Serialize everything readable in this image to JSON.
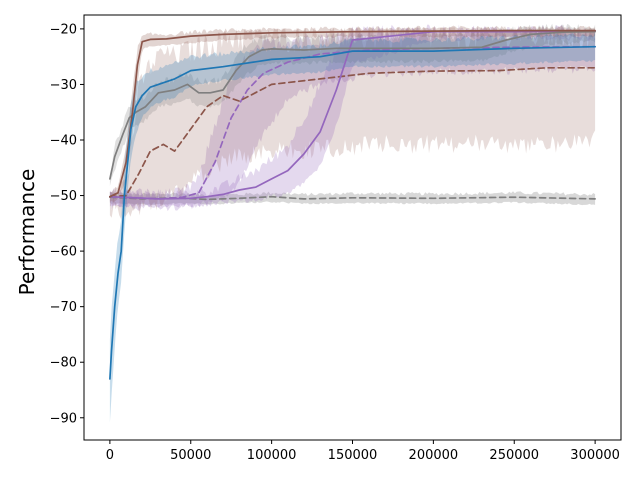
{
  "chart_data": {
    "type": "line",
    "title": "",
    "xlabel": "",
    "ylabel": "Performance",
    "xlim": [
      -16000,
      316000
    ],
    "ylim": [
      -94,
      -17.5
    ],
    "xticks": [
      0,
      50000,
      100000,
      150000,
      200000,
      250000,
      300000
    ],
    "xtick_labels": [
      "0",
      "50000",
      "100000",
      "150000",
      "200000",
      "250000",
      "300000"
    ],
    "yticks": [
      -90,
      -80,
      -70,
      -60,
      -50,
      -40,
      -30,
      -20
    ],
    "ytick_labels": [
      "−90",
      "−80",
      "−70",
      "−60",
      "−50",
      "−40",
      "−30",
      "−20"
    ],
    "grid": false,
    "legend": "none",
    "series": [
      {
        "color": "#7f7f7f",
        "dash": "6,4",
        "band_alpha": 0.3,
        "band_noise": 0.6,
        "x": [
          0,
          20000,
          40000,
          60000,
          80000,
          100000,
          120000,
          150000,
          200000,
          250000,
          300000
        ],
        "y": [
          -50.3,
          -50.6,
          -50.4,
          -50.7,
          -50.5,
          -50.2,
          -50.6,
          -50.4,
          -50.5,
          -50.3,
          -50.6
        ],
        "lower": [
          -51.2,
          -51.5,
          -51.3,
          -51.4,
          -51.2,
          -51.0,
          -51.3,
          -51.2,
          -51.3,
          -51.1,
          -51.5
        ],
        "upper": [
          -49.5,
          -49.8,
          -49.6,
          -49.9,
          -49.8,
          -49.5,
          -49.8,
          -49.6,
          -49.7,
          -49.5,
          -49.8
        ]
      },
      {
        "color": "#9467bd",
        "dash": "6,4",
        "band_alpha": 0.25,
        "band_noise": 3,
        "x": [
          0,
          30000,
          45000,
          55000,
          65000,
          75000,
          85000,
          95000,
          110000,
          130000,
          160000,
          200000,
          250000,
          300000
        ],
        "y": [
          -50.2,
          -50.6,
          -50.3,
          -49.5,
          -44.0,
          -36.0,
          -31.0,
          -28.0,
          -26.0,
          -24.5,
          -23.8,
          -23.5,
          -23.3,
          -23.2
        ],
        "lower": [
          -51,
          -51.4,
          -51.2,
          -51,
          -50.5,
          -49,
          -44,
          -38,
          -32,
          -29,
          -27.5,
          -27,
          -26.8,
          -26.5
        ],
        "upper": [
          -49.5,
          -49.8,
          -49.5,
          -47,
          -37,
          -29,
          -25,
          -23,
          -22,
          -21.5,
          -21,
          -20.8,
          -20.8,
          -20.8
        ]
      },
      {
        "color": "#8c564b",
        "dash": "6,4",
        "band_alpha": 0.2,
        "band_noise": 7,
        "x": [
          0,
          10000,
          18000,
          25000,
          33000,
          40000,
          50000,
          60000,
          70000,
          80000,
          100000,
          130000,
          160000,
          200000,
          240000,
          270000,
          300000
        ],
        "y": [
          -50.2,
          -50.0,
          -46.0,
          -42.0,
          -40.8,
          -42.0,
          -38.0,
          -34.0,
          -32.0,
          -33.0,
          -30.0,
          -29.0,
          -28.0,
          -27.6,
          -27.5,
          -27.0,
          -27.0
        ],
        "lower": [
          -51,
          -51,
          -50.5,
          -50,
          -49,
          -48,
          -46,
          -44,
          -42,
          -41,
          -40,
          -40,
          -39,
          -39,
          -39,
          -39,
          -38
        ],
        "upper": [
          -49.5,
          -48,
          -30,
          -26,
          -24,
          -24,
          -23,
          -22,
          -21.5,
          -21,
          -21,
          -20.8,
          -20.8,
          -20.8,
          -20.6,
          -20.6,
          -20.6
        ]
      },
      {
        "color": "#9467bd",
        "dash": "",
        "band_alpha": 0.25,
        "band_noise": 2,
        "x": [
          0,
          30000,
          50000,
          60000,
          70000,
          80000,
          90000,
          100000,
          110000,
          120000,
          130000,
          140000,
          150000,
          200000,
          250000,
          300000
        ],
        "y": [
          -50.2,
          -50.6,
          -50.5,
          -50.2,
          -49.8,
          -49.0,
          -48.5,
          -47.0,
          -45.5,
          -42.5,
          -38.5,
          -31.0,
          -22.0,
          -20.5,
          -20.5,
          -20.4
        ],
        "lower": [
          -51,
          -51.3,
          -51.2,
          -51,
          -50.8,
          -50.5,
          -50.2,
          -49.6,
          -49,
          -47.5,
          -44,
          -37,
          -26,
          -21.5,
          -21.2,
          -21.2
        ],
        "upper": [
          -49.5,
          -49.8,
          -49.6,
          -49.2,
          -48.5,
          -47,
          -45.5,
          -43.5,
          -41,
          -36,
          -30,
          -24,
          -20.2,
          -20.2,
          -20.2,
          -20.2
        ]
      },
      {
        "color": "#7f7f7f",
        "dash": "",
        "band_alpha": 0.25,
        "band_noise": 1.5,
        "x": [
          0,
          3000,
          8000,
          12000,
          16000,
          22000,
          30000,
          40000,
          48000,
          55000,
          62000,
          70000,
          78000,
          86000,
          94000,
          100000,
          120000,
          140000,
          160000,
          200000,
          230000,
          245000,
          260000,
          280000,
          300000
        ],
        "y": [
          -47.0,
          -43.0,
          -39.0,
          -36.0,
          -35.0,
          -34.0,
          -31.5,
          -31.0,
          -30.0,
          -31.5,
          -31.5,
          -31.0,
          -27.5,
          -25.0,
          -23.8,
          -23.6,
          -23.8,
          -23.5,
          -23.5,
          -23.5,
          -23.3,
          -22.0,
          -21.0,
          -20.6,
          -20.5
        ],
        "lower": [
          -48,
          -45,
          -41,
          -38,
          -37,
          -36,
          -33.5,
          -33,
          -32,
          -33.5,
          -33.5,
          -33,
          -30,
          -27.5,
          -26,
          -25.6,
          -25.8,
          -25.5,
          -25.5,
          -25.5,
          -25.3,
          -24,
          -23,
          -22.2,
          -21.8
        ],
        "upper": [
          -46,
          -41,
          -37,
          -34,
          -33,
          -32,
          -29.5,
          -29,
          -28,
          -29.5,
          -29.5,
          -29,
          -25,
          -22.5,
          -21.6,
          -21.6,
          -21.8,
          -21.5,
          -21.5,
          -21.5,
          -21.3,
          -20.3,
          -19.8,
          -19.8,
          -19.8
        ]
      },
      {
        "color": "#8c564b",
        "dash": "",
        "band_alpha": 0.25,
        "band_noise": 0.8,
        "x": [
          0,
          5000,
          10000,
          14000,
          17000,
          20000,
          25000,
          35000,
          50000,
          70000,
          100000,
          150000,
          200000,
          250000,
          300000
        ],
        "y": [
          -50.2,
          -49.5,
          -44.0,
          -35.0,
          -26.5,
          -22.3,
          -21.9,
          -21.8,
          -21.3,
          -21.0,
          -20.7,
          -20.5,
          -20.4,
          -20.3,
          -20.3
        ],
        "lower": [
          -51,
          -50.5,
          -47,
          -39,
          -30,
          -23.5,
          -22.8,
          -22.8,
          -22.3,
          -21.8,
          -21.4,
          -21.2,
          -21.2,
          -21.1,
          -21.1
        ],
        "upper": [
          -49.5,
          -48.5,
          -41,
          -31,
          -23.5,
          -21.3,
          -21.0,
          -21.0,
          -20.6,
          -20.3,
          -20.1,
          -19.9,
          -19.8,
          -19.8,
          -19.8
        ]
      },
      {
        "color": "#1f77b4",
        "dash": "",
        "band_alpha": 0.25,
        "band_noise": 1,
        "x": [
          0,
          1000,
          3000,
          5000,
          7000,
          9000,
          11000,
          13000,
          16000,
          20000,
          25000,
          30000,
          40000,
          50000,
          70000,
          100000,
          130000,
          150000,
          200000,
          250000,
          300000
        ],
        "y": [
          -83.0,
          -78.0,
          -70.0,
          -64.0,
          -60.0,
          -50.0,
          -44.0,
          -38.0,
          -34.0,
          -32.0,
          -30.5,
          -30.0,
          -29.0,
          -27.5,
          -26.8,
          -25.5,
          -25.0,
          -24.0,
          -24.0,
          -23.5,
          -23.2
        ],
        "lower": [
          -90.5,
          -86,
          -77,
          -70,
          -65,
          -56,
          -49,
          -43,
          -39,
          -35.5,
          -34,
          -33,
          -32,
          -30,
          -29,
          -28,
          -27.5,
          -26.5,
          -26.5,
          -26,
          -25.5
        ],
        "upper": [
          -76,
          -71,
          -63,
          -58,
          -54,
          -44,
          -39,
          -33,
          -29.5,
          -28.5,
          -27.5,
          -27,
          -26,
          -25,
          -24.5,
          -23.5,
          -23,
          -22,
          -22,
          -21.5,
          -21
        ]
      }
    ]
  }
}
